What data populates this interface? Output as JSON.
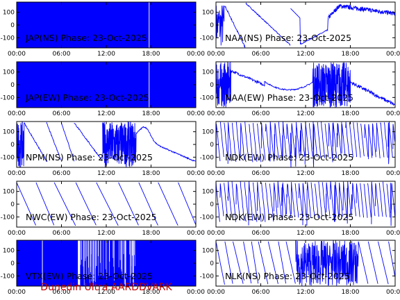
{
  "figure": {
    "footer": "Dunedin Ultra AARDDVARK",
    "colors": {
      "trace": "#0000ff",
      "axes": "#000000",
      "footer": "#c00000"
    }
  },
  "chart_data": [
    {
      "type": "line",
      "title": "JAP(NS) Phase: 23-Oct-2025",
      "xlabel": "",
      "ylabel": "",
      "x_ticks": [
        "00:00",
        "06:00",
        "12:00",
        "18:00",
        "00:00"
      ],
      "xlim": [
        0,
        24
      ],
      "y_ticks": [
        "100",
        "0",
        "-100"
      ],
      "ylim": [
        -180,
        180
      ],
      "grid": false,
      "pattern": "saturated"
    },
    {
      "type": "line",
      "title": "NAA(NS) Phase: 23-Oct-2025",
      "xlabel": "",
      "ylabel": "",
      "x_ticks": [
        "00:00",
        "06:00",
        "12:00",
        "18:00",
        "00:00"
      ],
      "xlim": [
        0,
        24
      ],
      "y_ticks": [
        "100",
        "0",
        "-100"
      ],
      "ylim": [
        -180,
        180
      ],
      "grid": false,
      "pattern": "drift"
    },
    {
      "type": "line",
      "title": "JAP(EW) Phase: 23-Oct-2025",
      "xlabel": "",
      "ylabel": "",
      "x_ticks": [
        "00:00",
        "06:00",
        "12:00",
        "18:00",
        "00:00"
      ],
      "xlim": [
        0,
        24
      ],
      "y_ticks": [
        "100",
        "0",
        "-100"
      ],
      "ylim": [
        -180,
        180
      ],
      "grid": false,
      "pattern": "saturated"
    },
    {
      "type": "line",
      "title": "NAA(EW) Phase: 23-Oct-2025",
      "xlabel": "",
      "ylabel": "",
      "x_ticks": [
        "00:00",
        "06:00",
        "12:00",
        "18:00",
        "00:00"
      ],
      "xlim": [
        0,
        24
      ],
      "y_ticks": [
        "100",
        "0",
        "-100"
      ],
      "ylim": [
        -180,
        180
      ],
      "grid": false,
      "pattern": "curve"
    },
    {
      "type": "line",
      "title": "NPM(NS) Phase: 23-Oct-2025",
      "xlabel": "",
      "ylabel": "",
      "x_ticks": [
        "00:00",
        "06:00",
        "12:00",
        "18:00",
        "00:00"
      ],
      "xlim": [
        0,
        24
      ],
      "y_ticks": [
        "100",
        "0",
        "-100"
      ],
      "ylim": [
        -180,
        180
      ],
      "grid": false,
      "pattern": "ramps-long"
    },
    {
      "type": "line",
      "title": "NDK(EW) Phase: 23-Oct-2025",
      "xlabel": "",
      "ylabel": "",
      "x_ticks": [
        "00:00",
        "06:00",
        "12:00",
        "18:00",
        "00:00"
      ],
      "xlim": [
        0,
        24
      ],
      "y_ticks": [
        "100",
        "0",
        "-100"
      ],
      "ylim": [
        -180,
        180
      ],
      "grid": false,
      "pattern": "noisy"
    },
    {
      "type": "line",
      "title": "NWC(EW) Phase: 23-Oct-2025",
      "xlabel": "",
      "ylabel": "",
      "x_ticks": [
        "00:00",
        "06:00",
        "12:00",
        "18:00",
        "00:00"
      ],
      "xlim": [
        0,
        24
      ],
      "y_ticks": [
        "100",
        "0",
        "-100"
      ],
      "ylim": [
        -180,
        180
      ],
      "grid": false,
      "pattern": "sawtooth"
    },
    {
      "type": "line",
      "title": "NDK(EW) Phase: 23-Oct-2025",
      "xlabel": "",
      "ylabel": "",
      "x_ticks": [
        "00:00",
        "06:00",
        "12:00",
        "18:00",
        "00:00"
      ],
      "xlim": [
        0,
        24
      ],
      "y_ticks": [
        "100",
        "0",
        "-100"
      ],
      "ylim": [
        -180,
        180
      ],
      "grid": false,
      "pattern": "noisy"
    },
    {
      "type": "line",
      "title": "VTX(EW) Phase: 23-Oct-2025",
      "xlabel": "",
      "ylabel": "",
      "x_ticks": [
        "00:00",
        "06:00",
        "12:00",
        "18:00",
        "00:00"
      ],
      "xlim": [
        0,
        24
      ],
      "y_ticks": [
        "100",
        "0",
        "-100"
      ],
      "ylim": [
        -180,
        180
      ],
      "grid": false,
      "pattern": "saturated-gaps"
    },
    {
      "type": "line",
      "title": "NLK(NS) Phase: 23-Oct-2025",
      "xlabel": "",
      "ylabel": "",
      "x_ticks": [
        "00:00",
        "06:00",
        "12:00",
        "18:00",
        "00:00"
      ],
      "xlim": [
        0,
        24
      ],
      "y_ticks": [
        "100",
        "0",
        "-100"
      ],
      "ylim": [
        -180,
        180
      ],
      "grid": false,
      "pattern": "fast-sawtooth"
    }
  ]
}
